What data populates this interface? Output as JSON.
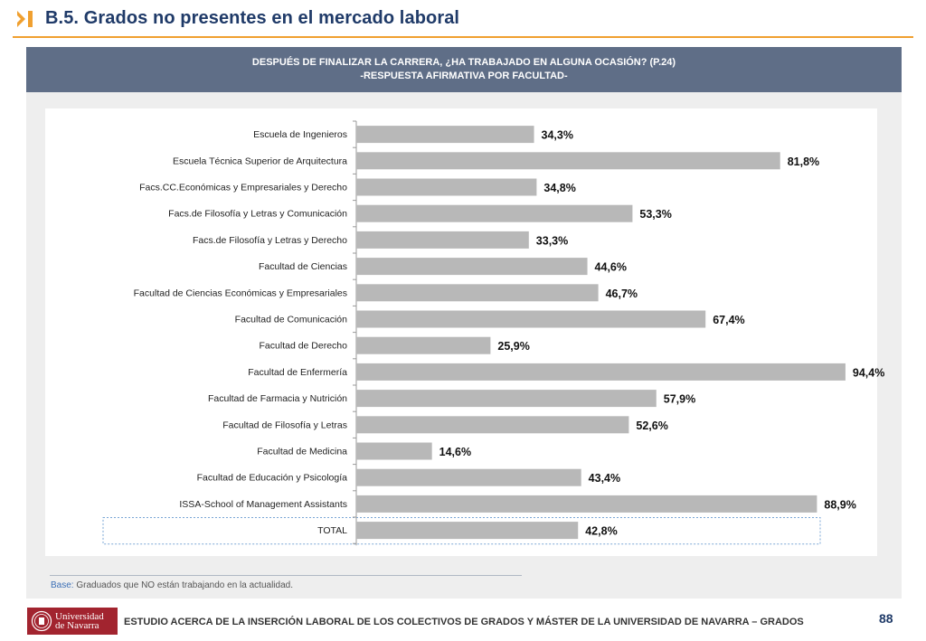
{
  "header": {
    "title": "B.5. Grados no presentes en el mercado laboral",
    "icon": "chevron-bar-icon",
    "accent_color": "#f0a030",
    "title_color": "#1f3a68"
  },
  "chart_banner": {
    "line1": "DESPUÉS DE FINALIZAR LA CARRERA, ¿HA TRABAJADO EN ALGUNA OCASIÓN? (P.24)",
    "line2": "-RESPUESTA AFIRMATIVA POR FACULTAD-",
    "color": "#5f6e87"
  },
  "chart_data": {
    "type": "bar",
    "orientation": "horizontal",
    "title": "",
    "xlabel": "",
    "ylabel": "",
    "xlim": [
      0,
      100
    ],
    "grid": false,
    "bar_color": "#b8b8b8",
    "categories": [
      "Escuela de Ingenieros",
      "Escuela Técnica Superior de Arquitectura",
      "Facs.CC.Económicas y Empresariales y Derecho",
      "Facs.de Filosofía y Letras y Comunicación",
      "Facs.de Filosofía y Letras y Derecho",
      "Facultad de Ciencias",
      "Facultad de Ciencias Económicas y Empresariales",
      "Facultad de Comunicación",
      "Facultad de Derecho",
      "Facultad de Enfermería",
      "Facultad de Farmacia y Nutrición",
      "Facultad de Filosofía y Letras",
      "Facultad de Medicina",
      "Facultad de Educación y Psicología",
      "ISSA-School of Management Assistants",
      "TOTAL"
    ],
    "values": [
      34.3,
      81.8,
      34.8,
      53.3,
      33.3,
      44.6,
      46.7,
      67.4,
      25.9,
      94.4,
      57.9,
      52.6,
      14.6,
      43.4,
      88.9,
      42.8
    ],
    "value_labels": [
      "34,3%",
      "81,8%",
      "34,8%",
      "53,3%",
      "33,3%",
      "44,6%",
      "46,7%",
      "67,4%",
      "25,9%",
      "94,4%",
      "57,9%",
      "52,6%",
      "14,6%",
      "43,4%",
      "88,9%",
      "42,8%"
    ],
    "highlight_category": "TOTAL"
  },
  "base_note": {
    "label": "Base:",
    "text": "Graduados que NO están trabajando en la actualidad."
  },
  "footer": {
    "logo_line1": "Universidad",
    "logo_line2": "de Navarra",
    "logo_color": "#a2242f",
    "text": "ESTUDIO ACERCA DE LA INSERCIÓN LABORAL DE LOS COLECTIVOS DE GRADOS Y MÁSTER DE LA UNIVERSIDAD DE NAVARRA – GRADOS",
    "page_number": "88"
  }
}
